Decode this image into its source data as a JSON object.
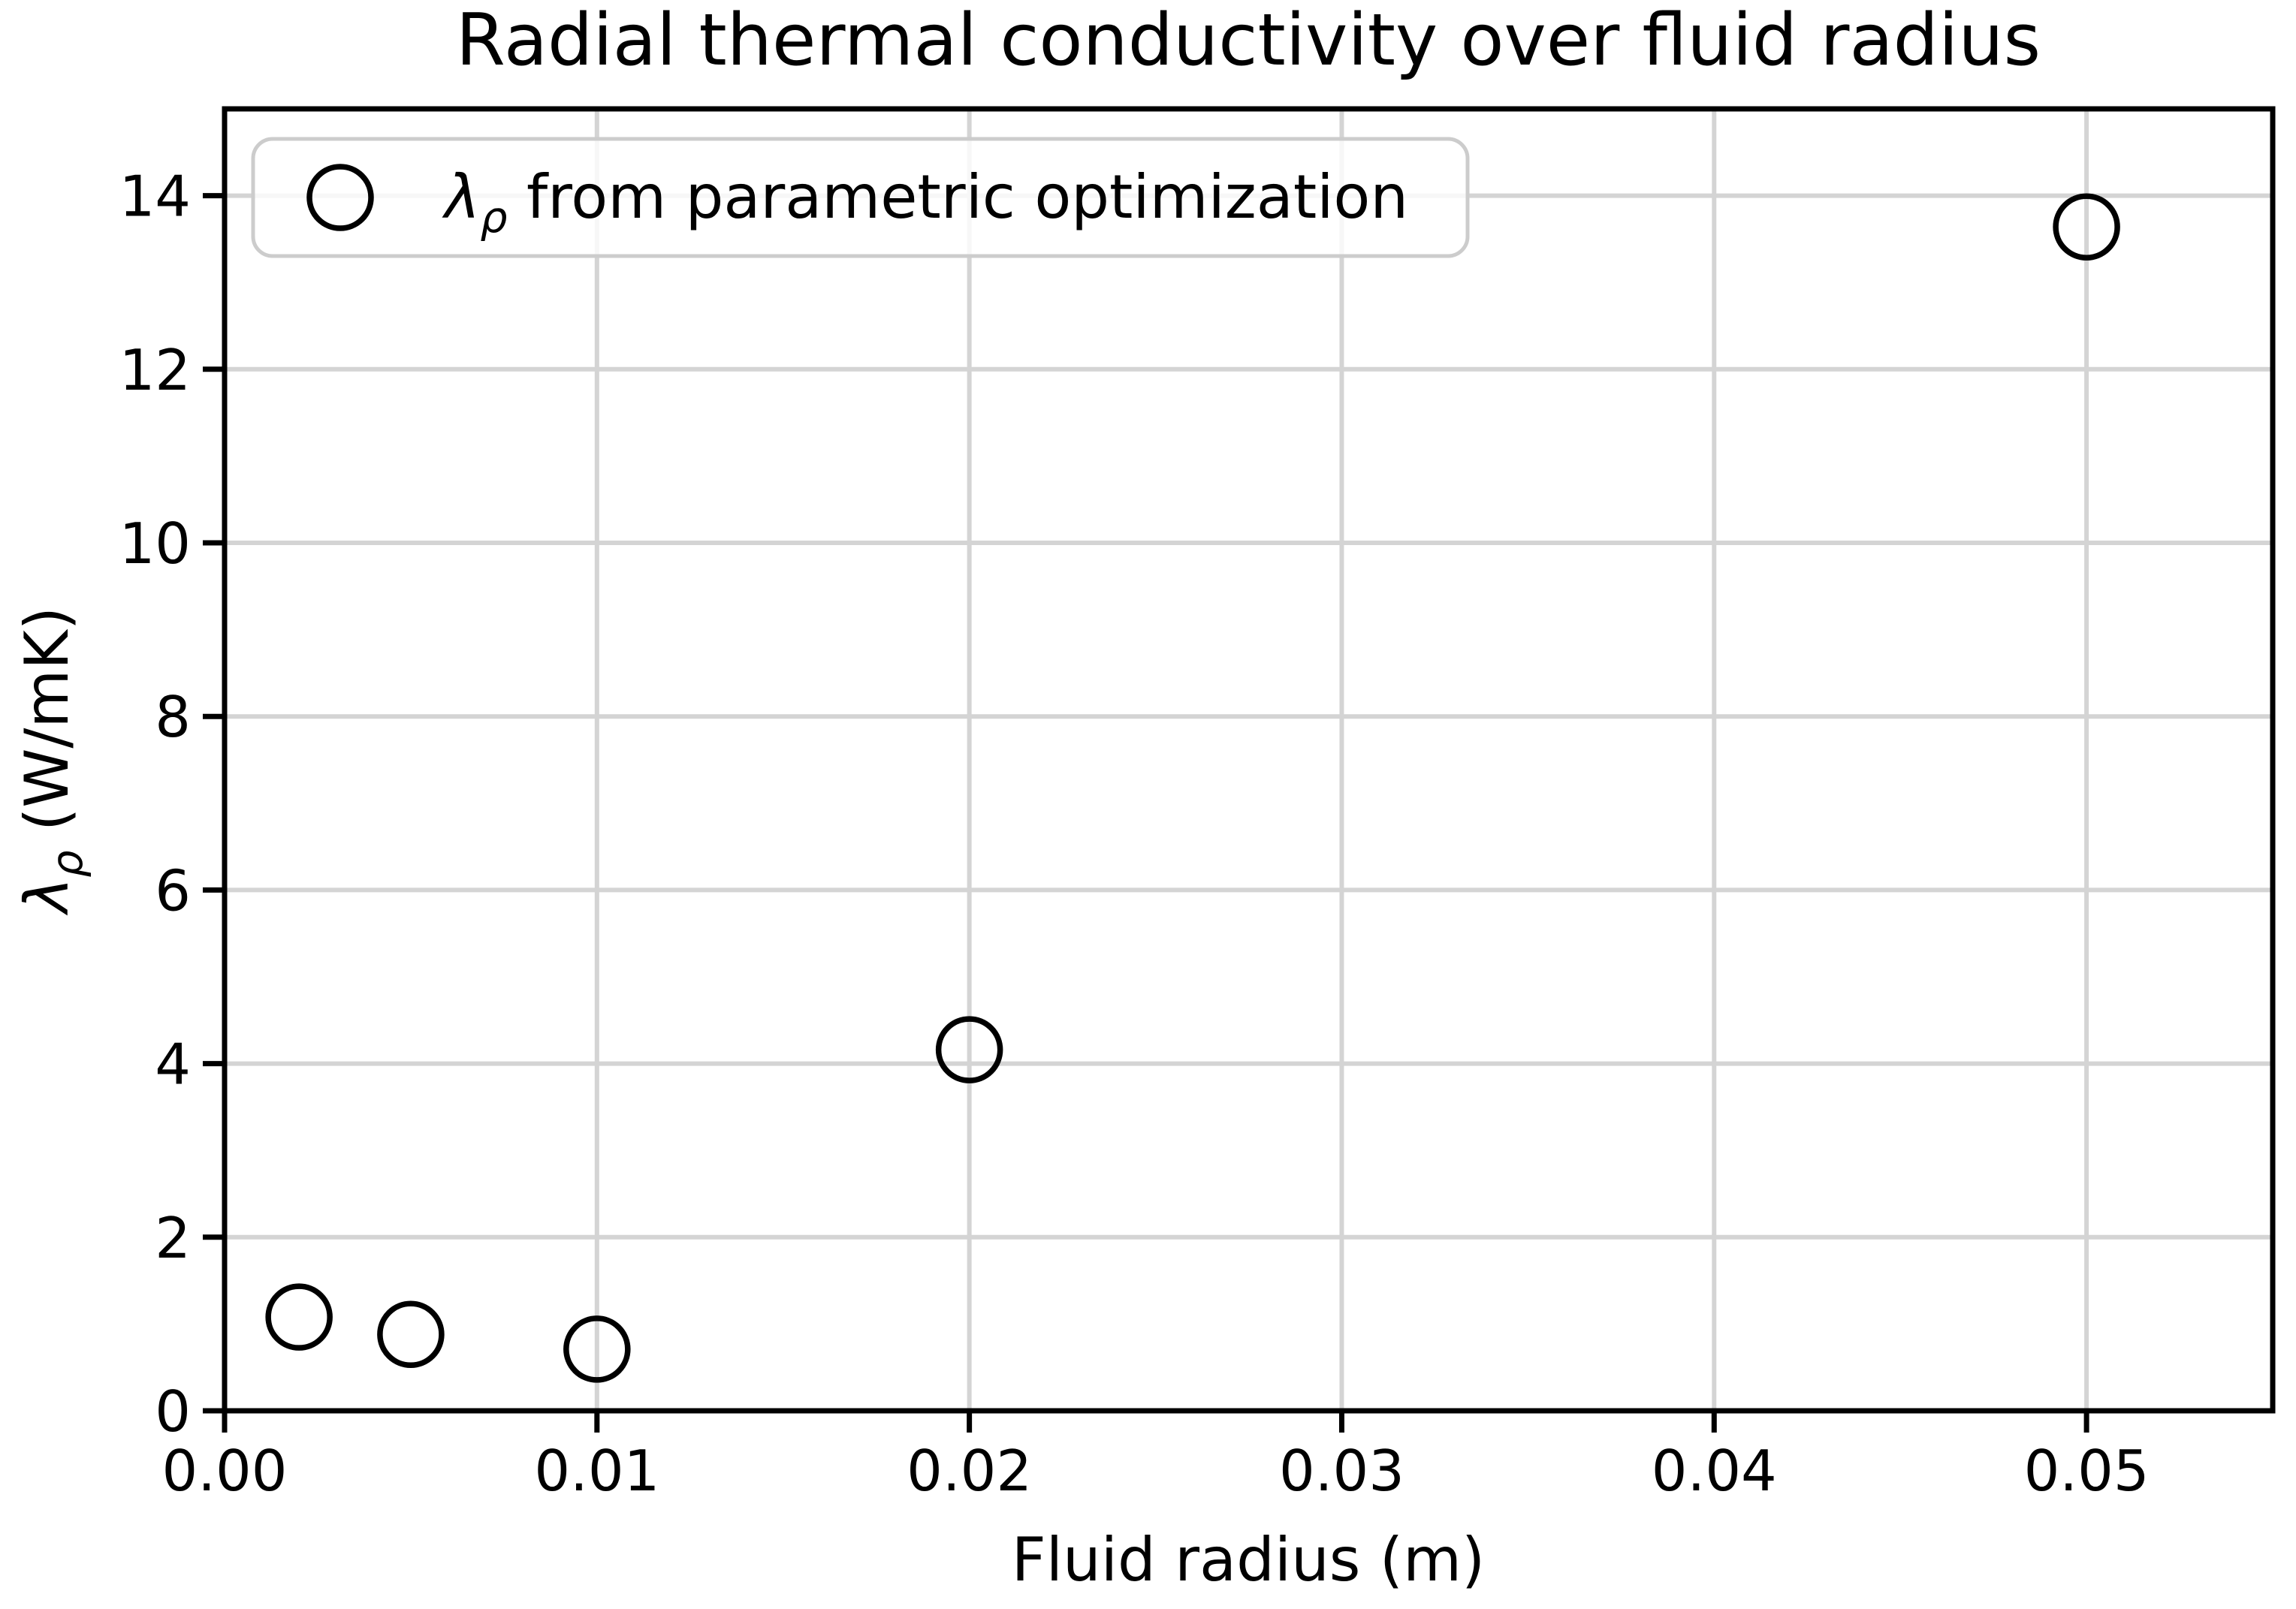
{
  "chart_data": {
    "type": "scatter",
    "title": "Radial thermal conductivity over fluid radius",
    "xlabel": "Fluid radius (m)",
    "ylabel_parts": {
      "symbol": "λ",
      "subscript": "ρ",
      "rest": " (W/mK)"
    },
    "legend": {
      "position": "upper left",
      "marker": "open-circle",
      "label_parts": {
        "symbol": "λ",
        "subscript": "ρ",
        "rest": " from parametric optimization"
      },
      "label_plain": "λ_ρ from parametric optimization"
    },
    "series": [
      {
        "name": "λ_ρ from parametric optimization",
        "marker": "open-circle",
        "x": [
          0.002,
          0.005,
          0.01,
          0.02,
          0.05
        ],
        "y": [
          1.08,
          0.88,
          0.71,
          4.16,
          13.64
        ]
      }
    ],
    "xlim": [
      0,
      0.055
    ],
    "ylim": [
      0,
      15.0
    ],
    "xticks": {
      "values": [
        0,
        0.01,
        0.02,
        0.03,
        0.04,
        0.05
      ],
      "labels": [
        "0.00",
        "0.01",
        "0.02",
        "0.03",
        "0.04",
        "0.05"
      ]
    },
    "yticks": {
      "values": [
        0,
        2,
        4,
        6,
        8,
        10,
        12,
        14
      ],
      "labels": [
        "0",
        "2",
        "4",
        "6",
        "8",
        "10",
        "12",
        "14"
      ]
    },
    "grid": true,
    "legend_visible": true,
    "colors": {
      "marker": "#000000",
      "grid": "#d4d4d4",
      "spine": "#000000",
      "text": "#000000",
      "legend_border": "#cccccc",
      "legend_face": "#ffffff",
      "background": "#ffffff"
    }
  }
}
